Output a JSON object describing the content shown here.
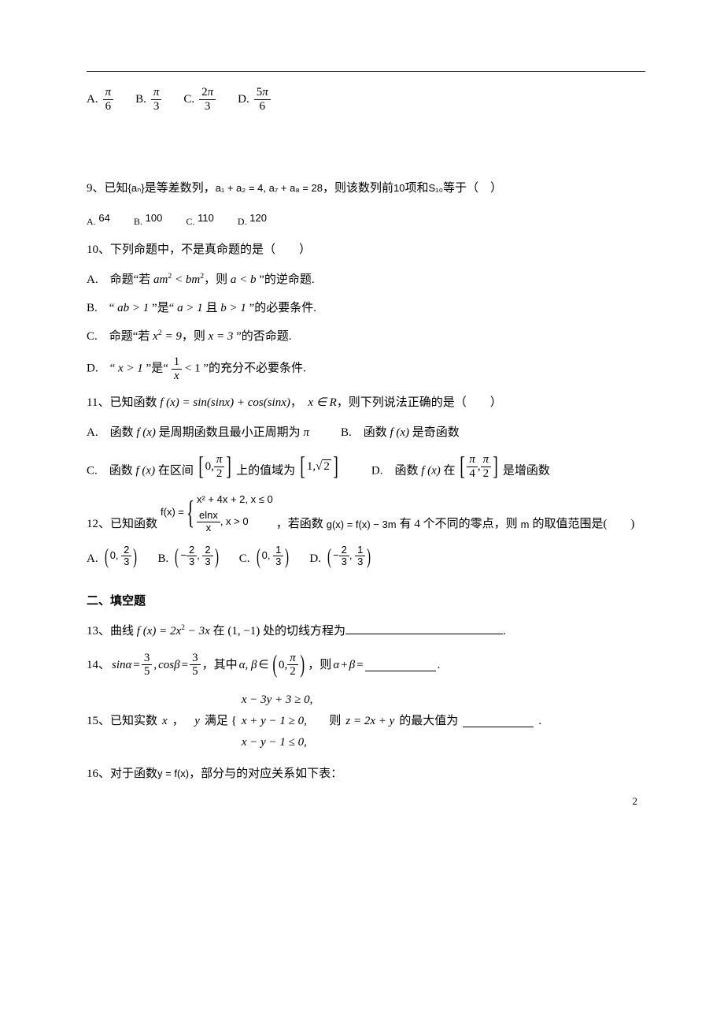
{
  "q8": {
    "options": [
      {
        "label": "A.",
        "num": "π",
        "den": "6",
        "num_italic": true
      },
      {
        "label": "B.",
        "num": "π",
        "den": "3",
        "num_italic": true
      },
      {
        "label": "C.",
        "num": "2π",
        "den": "3",
        "num_italic": false
      },
      {
        "label": "D.",
        "num": "5π",
        "den": "6",
        "num_italic": false
      }
    ]
  },
  "q9": {
    "stem_prefix": "9、已知",
    "seq": "{aₙ}",
    "mid": "是等差数列，",
    "cond": "a₁ + a₂ = 4, a₇ + a₈ = 28",
    "mid2": "，则该数列前",
    "ten": "10",
    "mid3": "项和",
    "S10": "S₁₀",
    "tail": "等于（　）",
    "options": [
      {
        "label": "A.",
        "val": "64"
      },
      {
        "label": "B.",
        "val": "100"
      },
      {
        "label": "C.",
        "val": "110"
      },
      {
        "label": "D.",
        "val": "120"
      }
    ]
  },
  "q10": {
    "stem": "10、下列命题中，不是真命题的是（　　）",
    "A_pre": "A.　命题“若 ",
    "A_math1": "am² < bm²",
    "A_mid": "，则 ",
    "A_math2": "a < b",
    "A_post": " ”的逆命题.",
    "B_pre": "B.　“ ",
    "B_math1": "ab > 1",
    "B_mid": " ”是“ ",
    "B_math2": "a > 1",
    "B_and": " 且 ",
    "B_math3": "b > 1",
    "B_post": " ”的必要条件.",
    "C_pre": "C.　命题“若 ",
    "C_math1": "x² = 9",
    "C_mid": "，则 ",
    "C_math2": "x = 3",
    "C_post": " ”的否命题.",
    "D_pre": "D.　“ ",
    "D_math1": "x > 1",
    "D_mid": " ”是“ ",
    "D_frac_num": "1",
    "D_frac_den": "x",
    "D_lt": " < 1",
    "D_post": " ”的充分不必要条件."
  },
  "q11": {
    "stem_pre": "11、已知函数 ",
    "f": "f (x) = sin(sinx) + cos(sinx)",
    "stem_mid": "，　",
    "xR": "x ∈ R",
    "stem_post": "，则下列说法正确的是（　　）",
    "A_pre": "A.　函数 ",
    "A_f": "f (x)",
    "A_post": " 是周期函数且最小正周期为 ",
    "A_pi": "π",
    "B_pre": "B.　函数 ",
    "B_f": "f (x)",
    "B_post": " 是奇函数",
    "C_pre": "C.　函数 ",
    "C_f": "f (x)",
    "C_mid": " 在区间 ",
    "C_int_a": "0",
    "C_int_b_num": "π",
    "C_int_b_den": "2",
    "C_val": " 上的值域为 ",
    "C_v1": "1",
    "C_v2": "2",
    "D_pre": "D.　函数 ",
    "D_f": "f (x)",
    "D_mid": " 在 ",
    "D_a_num": "π",
    "D_a_den": "4",
    "D_b_num": "π",
    "D_b_den": "2",
    "D_post": " 是增函数"
  },
  "q12": {
    "stem_pre": "12、已知函数",
    "f_lhs": "f(x) = ",
    "case1": "x² + 4x + 2, x ≤ 0",
    "case2_num": "elnx",
    "case2_den": "x",
    "case2_cond": ", x > 0",
    "stem_mid": "，若函数",
    "g": "g(x) = f(x) − 3m",
    "stem_mid2": "有 4 个不同的零点，则",
    "m": "m",
    "stem_post": "的取值范围是(　　)",
    "options": [
      {
        "label": "A.",
        "a": "0",
        "b_num": "2",
        "b_den": "3",
        "a_neg": false
      },
      {
        "label": "B.",
        "a_num": "2",
        "a_den": "3",
        "b_num": "2",
        "b_den": "3",
        "a_neg": true
      },
      {
        "label": "C.",
        "a": "0",
        "b_num": "1",
        "b_den": "3",
        "a_neg": false
      },
      {
        "label": "D.",
        "a_num": "2",
        "a_den": "3",
        "b_num": "1",
        "b_den": "3",
        "a_neg": true
      }
    ]
  },
  "section2": "二、填空题",
  "q13": {
    "pre": "13、曲线 ",
    "f": "f (x) = 2x² − 3x",
    "mid": " 在 ",
    "pt": "(1, −1)",
    "post": " 处的切线方程为",
    "blank_width": 200,
    "dot": "."
  },
  "q14": {
    "pre": "14、",
    "sina": "sinα",
    "eq1_num": "3",
    "eq1_den": "5",
    "comma": "，",
    "cosb": "cosβ",
    "eq2_num": "3",
    "eq2_den": "5",
    "mid": "，其中 ",
    "ab": "α, β",
    "in": " ∈ ",
    "int_a": "0",
    "int_b_num": "π",
    "int_b_den": "2",
    "then": "，则 ",
    "sum": "α + β",
    "eqs": " = ",
    "blank_width": 90,
    "dot": "."
  },
  "q15": {
    "pre": "15、已知实数 ",
    "x": "x",
    "mid1": "，　",
    "y": "y",
    "mid2": " 满足 { ",
    "c1": "x − 3y + 3 ≥ 0,",
    "c2": "x + y − 1 ≥ 0,",
    "c3": "x − y − 1 ≤ 0,",
    "then": "　则 ",
    "z": "z = 2x + y",
    "post": " 的最大值为",
    "blank_width": 90,
    "dot": "."
  },
  "q16": {
    "pre": "16、对于函数",
    "f": "y = f(x)",
    "post": "，部分与的对应关系如下表："
  },
  "page_number": "2",
  "colors": {
    "text": "#000000",
    "background": "#ffffff"
  }
}
